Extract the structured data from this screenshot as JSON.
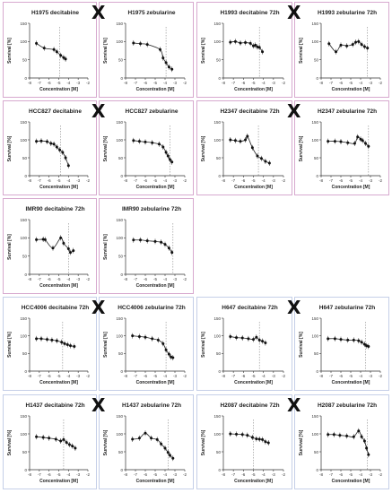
{
  "chart_data": [
    {
      "type": "scatter",
      "title": "H1975 decitabine",
      "xlabel": "Concentration [M]",
      "ylabel": "Survival [%]",
      "xlim": [
        -8,
        -2
      ],
      "ylim": [
        0,
        150
      ],
      "xticks": [
        -8,
        -7,
        -6,
        -5,
        -4,
        -3,
        -2
      ],
      "yticks": [
        0,
        50,
        100,
        150
      ],
      "color": "#d7a9cf",
      "points": [
        [
          -7.3,
          95
        ],
        [
          -6.5,
          82
        ],
        [
          -5.5,
          78
        ],
        [
          -5.2,
          72
        ],
        [
          -4.8,
          62
        ],
        [
          -4.5,
          56
        ],
        [
          -4.3,
          52
        ]
      ],
      "ref_x": -4.9
    },
    {
      "type": "scatter",
      "title": "H1975 zebularine",
      "xlabel": "Concentration [M]",
      "ylabel": "Survival [%]",
      "xlim": [
        -8,
        -2
      ],
      "ylim": [
        0,
        150
      ],
      "xticks": [
        -8,
        -7,
        -6,
        -5,
        -4,
        -3,
        -2
      ],
      "yticks": [
        0,
        50,
        100,
        150
      ],
      "color": "#d7a9cf",
      "points": [
        [
          -7.2,
          96
        ],
        [
          -6.5,
          94
        ],
        [
          -5.8,
          92
        ],
        [
          -4.5,
          78
        ],
        [
          -4.2,
          55
        ],
        [
          -3.9,
          42
        ],
        [
          -3.6,
          30
        ],
        [
          -3.3,
          24
        ]
      ],
      "ref_x": -3.9
    },
    {
      "type": "scatter",
      "title": "H1993 decitabine 72h",
      "xlabel": "Concentration [M]",
      "ylabel": "Survival [%]",
      "xlim": [
        -8,
        -2
      ],
      "ylim": [
        0,
        150
      ],
      "xticks": [
        -8,
        -7,
        -6,
        -5,
        -4,
        -3,
        -2
      ],
      "yticks": [
        0,
        50,
        100,
        150
      ],
      "color": "#d7a9cf",
      "points": [
        [
          -7.3,
          98
        ],
        [
          -6.8,
          100
        ],
        [
          -6.3,
          96
        ],
        [
          -5.8,
          97
        ],
        [
          -5.3,
          95
        ],
        [
          -5,
          88
        ],
        [
          -4.8,
          90
        ],
        [
          -4.6,
          85
        ],
        [
          -4.4,
          84
        ],
        [
          -4.1,
          72
        ]
      ],
      "ref_x": -4.4
    },
    {
      "type": "scatter",
      "title": "H1993 zebularine 72h",
      "xlabel": "Concentration [M]",
      "ylabel": "Survival [%]",
      "xlim": [
        -8,
        -2
      ],
      "ylim": [
        0,
        150
      ],
      "xticks": [
        -8,
        -7,
        -6,
        -5,
        -4,
        -3,
        -2
      ],
      "yticks": [
        0,
        50,
        100,
        150
      ],
      "color": "#d7a9cf",
      "points": [
        [
          -7.2,
          94
        ],
        [
          -6.5,
          72
        ],
        [
          -6,
          90
        ],
        [
          -5.4,
          88
        ],
        [
          -4.8,
          92
        ],
        [
          -4.5,
          98
        ],
        [
          -4.2,
          100
        ],
        [
          -3.9,
          92
        ],
        [
          -3.6,
          86
        ],
        [
          -3.3,
          82
        ]
      ],
      "ref_x": -3.3
    },
    {
      "type": "scatter",
      "title": "HCC827 decitabine",
      "xlabel": "Concentration [M]",
      "ylabel": "Survival [%]",
      "xlim": [
        -8,
        -2
      ],
      "ylim": [
        0,
        150
      ],
      "xticks": [
        -8,
        -7,
        -6,
        -5,
        -4,
        -3,
        -2
      ],
      "yticks": [
        0,
        50,
        100,
        150
      ],
      "color": "#d7a9cf",
      "points": [
        [
          -7.3,
          96
        ],
        [
          -6.8,
          97
        ],
        [
          -6.2,
          95
        ],
        [
          -5.8,
          90
        ],
        [
          -5.5,
          88
        ],
        [
          -5.2,
          80
        ],
        [
          -4.9,
          72
        ],
        [
          -4.6,
          65
        ],
        [
          -4.3,
          50
        ],
        [
          -4,
          28
        ]
      ],
      "ref_x": -4.8
    },
    {
      "type": "scatter",
      "title": "HCC827 zebularine",
      "xlabel": "Concentration [M]",
      "ylabel": "Survival [%]",
      "xlim": [
        -8,
        -2
      ],
      "ylim": [
        0,
        150
      ],
      "xticks": [
        -8,
        -7,
        -6,
        -5,
        -4,
        -3,
        -2
      ],
      "yticks": [
        0,
        50,
        100,
        150
      ],
      "color": "#d7a9cf",
      "points": [
        [
          -7.2,
          98
        ],
        [
          -6.6,
          96
        ],
        [
          -6,
          94
        ],
        [
          -5.3,
          92
        ],
        [
          -4.6,
          88
        ],
        [
          -4.2,
          80
        ],
        [
          -3.9,
          65
        ],
        [
          -3.7,
          55
        ],
        [
          -3.5,
          45
        ],
        [
          -3.3,
          38
        ]
      ],
      "ref_x": -3.5
    },
    {
      "type": "scatter",
      "title": "H2347 decitabine 72h",
      "xlabel": "Concentration [M]",
      "ylabel": "Survival [%]",
      "xlim": [
        -8,
        -2
      ],
      "ylim": [
        0,
        150
      ],
      "xticks": [
        -8,
        -7,
        -6,
        -5,
        -4,
        -3,
        -2
      ],
      "yticks": [
        0,
        50,
        100,
        150
      ],
      "color": "#d7a9cf",
      "points": [
        [
          -7.3,
          100
        ],
        [
          -6.8,
          98
        ],
        [
          -6.3,
          96
        ],
        [
          -5.8,
          100
        ],
        [
          -5.6,
          110
        ],
        [
          -5.1,
          78
        ],
        [
          -4.6,
          55
        ],
        [
          -4.2,
          48
        ],
        [
          -3.8,
          40
        ],
        [
          -3.4,
          35
        ]
      ],
      "ref_x": -4.5
    },
    {
      "type": "scatter",
      "title": "H2347 zebularine 72h",
      "xlabel": "Concentration [M]",
      "ylabel": "Survival [%]",
      "xlim": [
        -8,
        -2
      ],
      "ylim": [
        0,
        150
      ],
      "xticks": [
        -8,
        -7,
        -6,
        -5,
        -4,
        -3,
        -2
      ],
      "yticks": [
        0,
        50,
        100,
        150
      ],
      "color": "#d7a9cf",
      "points": [
        [
          -7.3,
          96
        ],
        [
          -6.6,
          96
        ],
        [
          -6,
          95
        ],
        [
          -5.3,
          92
        ],
        [
          -4.6,
          90
        ],
        [
          -4.3,
          108
        ],
        [
          -4,
          102
        ],
        [
          -3.8,
          98
        ],
        [
          -3.5,
          90
        ],
        [
          -3.2,
          82
        ]
      ],
      "ref_x": -3.2
    },
    {
      "type": "scatter",
      "title": "IMR90 decitabine 72h",
      "xlabel": "Concentration [M]",
      "ylabel": "Survival [%]",
      "xlim": [
        -8,
        -2
      ],
      "ylim": [
        0,
        150
      ],
      "xticks": [
        -8,
        -7,
        -6,
        -5,
        -4,
        -3,
        -2
      ],
      "yticks": [
        0,
        50,
        100,
        150
      ],
      "color": "#d7a9cf",
      "points": [
        [
          -7.3,
          95
        ],
        [
          -6.6,
          96
        ],
        [
          -6.4,
          95
        ],
        [
          -5.6,
          72
        ],
        [
          -4.8,
          100
        ],
        [
          -4.5,
          85
        ],
        [
          -4,
          70
        ],
        [
          -3.8,
          60
        ],
        [
          -3.5,
          65
        ]
      ],
      "ref_x": -4.0
    },
    {
      "type": "scatter",
      "title": "IMR90 zebularine 72h",
      "xlabel": "Concentration [M]",
      "ylabel": "Survival [%]",
      "xlim": [
        -8,
        -2
      ],
      "ylim": [
        0,
        150
      ],
      "xticks": [
        -8,
        -7,
        -6,
        -5,
        -4,
        -3,
        -2
      ],
      "yticks": [
        0,
        50,
        100,
        150
      ],
      "color": "#d7a9cf",
      "points": [
        [
          -7.2,
          94
        ],
        [
          -6.5,
          94
        ],
        [
          -5.8,
          92
        ],
        [
          -5,
          90
        ],
        [
          -4.4,
          88
        ],
        [
          -4,
          82
        ],
        [
          -3.6,
          72
        ],
        [
          -3.3,
          60
        ]
      ],
      "ref_x": -3.2
    },
    {
      "type": "scatter",
      "title": "HCC4006 decitabine 72h",
      "xlabel": "Concentration [M]",
      "ylabel": "Survival [%]",
      "xlim": [
        -8,
        -2
      ],
      "ylim": [
        0,
        150
      ],
      "xticks": [
        -8,
        -7,
        -6,
        -5,
        -4,
        -3,
        -2
      ],
      "yticks": [
        0,
        50,
        100,
        150
      ],
      "color": "#c5cfe8",
      "points": [
        [
          -7.3,
          92
        ],
        [
          -6.8,
          92
        ],
        [
          -6.2,
          90
        ],
        [
          -5.7,
          88
        ],
        [
          -5.2,
          86
        ],
        [
          -4.7,
          82
        ],
        [
          -4.4,
          78
        ],
        [
          -4.1,
          75
        ],
        [
          -3.8,
          72
        ],
        [
          -3.4,
          70
        ]
      ],
      "ref_x": -4.6
    },
    {
      "type": "scatter",
      "title": "HCC4006 zebularine 72h",
      "xlabel": "Concentration [M]",
      "ylabel": "Survival [%]",
      "xlim": [
        -8,
        -2
      ],
      "ylim": [
        0,
        150
      ],
      "xticks": [
        -8,
        -7,
        -6,
        -5,
        -4,
        -3,
        -2
      ],
      "yticks": [
        0,
        50,
        100,
        150
      ],
      "color": "#c5cfe8",
      "points": [
        [
          -7.3,
          100
        ],
        [
          -6.6,
          98
        ],
        [
          -6,
          96
        ],
        [
          -5.3,
          92
        ],
        [
          -4.7,
          88
        ],
        [
          -4.2,
          78
        ],
        [
          -3.9,
          60
        ],
        [
          -3.6,
          48
        ],
        [
          -3.4,
          40
        ],
        [
          -3.2,
          38
        ]
      ],
      "ref_x": -3.9
    },
    {
      "type": "scatter",
      "title": "H647 decitabine 72h",
      "xlabel": "Concentration [M]",
      "ylabel": "Survival [%]",
      "xlim": [
        -8,
        -2
      ],
      "ylim": [
        0,
        150
      ],
      "xticks": [
        -8,
        -7,
        -6,
        -5,
        -4,
        -3,
        -2
      ],
      "yticks": [
        0,
        50,
        100,
        150
      ],
      "color": "#c5cfe8",
      "points": [
        [
          -7.3,
          98
        ],
        [
          -6.7,
          95
        ],
        [
          -6.1,
          94
        ],
        [
          -5.5,
          92
        ],
        [
          -5,
          90
        ],
        [
          -4.7,
          96
        ],
        [
          -4.4,
          88
        ],
        [
          -4.1,
          85
        ],
        [
          -3.8,
          80
        ]
      ],
      "ref_x": -4.4
    },
    {
      "type": "scatter",
      "title": "H647 zebularine 72h",
      "xlabel": "Concentration [M]",
      "ylabel": "Survival [%]",
      "xlim": [
        -8,
        -2
      ],
      "ylim": [
        0,
        150
      ],
      "xticks": [
        -8,
        -7,
        -6,
        -5,
        -4,
        -3,
        -2
      ],
      "yticks": [
        0,
        50,
        100,
        150
      ],
      "color": "#c5cfe8",
      "points": [
        [
          -7.3,
          92
        ],
        [
          -6.6,
          92
        ],
        [
          -6,
          90
        ],
        [
          -5.3,
          88
        ],
        [
          -4.7,
          88
        ],
        [
          -4.2,
          86
        ],
        [
          -3.9,
          82
        ],
        [
          -3.6,
          76
        ],
        [
          -3.4,
          72
        ],
        [
          -3.2,
          70
        ]
      ],
      "ref_x": -3.5
    },
    {
      "type": "scatter",
      "title": "H1437 decitabine 72h",
      "xlabel": "Concentration [M]",
      "ylabel": "Survival [%]",
      "xlim": [
        -8,
        -2
      ],
      "ylim": [
        0,
        150
      ],
      "xticks": [
        -8,
        -7,
        -6,
        -5,
        -4,
        -3,
        -2
      ],
      "yticks": [
        0,
        50,
        100,
        150
      ],
      "color": "#c5cfe8",
      "points": [
        [
          -7.3,
          92
        ],
        [
          -6.6,
          90
        ],
        [
          -6,
          88
        ],
        [
          -5.3,
          85
        ],
        [
          -4.8,
          80
        ],
        [
          -4.5,
          84
        ],
        [
          -4.2,
          76
        ],
        [
          -3.9,
          70
        ],
        [
          -3.6,
          66
        ],
        [
          -3.3,
          60
        ]
      ],
      "ref_x": -4.5
    },
    {
      "type": "scatter",
      "title": "H1437 zebularine 72h",
      "xlabel": "Concentration [M]",
      "ylabel": "Survival [%]",
      "xlim": [
        -8,
        -2
      ],
      "ylim": [
        0,
        150
      ],
      "xticks": [
        -8,
        -7,
        -6,
        -5,
        -4,
        -3,
        -2
      ],
      "yticks": [
        0,
        50,
        100,
        150
      ],
      "color": "#c5cfe8",
      "points": [
        [
          -7.3,
          85
        ],
        [
          -6.6,
          88
        ],
        [
          -6,
          102
        ],
        [
          -5.4,
          88
        ],
        [
          -4.8,
          84
        ],
        [
          -4.4,
          72
        ],
        [
          -4,
          60
        ],
        [
          -3.7,
          48
        ],
        [
          -3.5,
          40
        ],
        [
          -3.2,
          32
        ]
      ],
      "ref_x": -3.7
    },
    {
      "type": "scatter",
      "title": "H2087 decitabine 72h",
      "xlabel": "Concentration [M]",
      "ylabel": "Survival [%]",
      "xlim": [
        -8,
        -2
      ],
      "ylim": [
        0,
        150
      ],
      "xticks": [
        -8,
        -7,
        -6,
        -5,
        -4,
        -3,
        -2
      ],
      "yticks": [
        0,
        50,
        100,
        150
      ],
      "color": "#c5cfe8",
      "points": [
        [
          -7.3,
          100
        ],
        [
          -6.7,
          99
        ],
        [
          -6.1,
          98
        ],
        [
          -5.6,
          96
        ],
        [
          -5.1,
          90
        ],
        [
          -4.7,
          86
        ],
        [
          -4.4,
          85
        ],
        [
          -4.1,
          84
        ],
        [
          -3.8,
          78
        ],
        [
          -3.5,
          75
        ]
      ],
      "ref_x": -5.0
    },
    {
      "type": "scatter",
      "title": "H2087 zebularine 72h",
      "xlabel": "Concentration [M]",
      "ylabel": "Survival [%]",
      "xlim": [
        -8,
        -2
      ],
      "ylim": [
        0,
        150
      ],
      "xticks": [
        -8,
        -7,
        -6,
        -5,
        -4,
        -3,
        -2
      ],
      "yticks": [
        0,
        50,
        100,
        150
      ],
      "color": "#c5cfe8",
      "points": [
        [
          -7.3,
          98
        ],
        [
          -6.7,
          98
        ],
        [
          -6.1,
          96
        ],
        [
          -5.4,
          94
        ],
        [
          -4.7,
          92
        ],
        [
          -4.2,
          108
        ],
        [
          -3.9,
          92
        ],
        [
          -3.6,
          80
        ],
        [
          -3.4,
          60
        ],
        [
          -3.2,
          42
        ]
      ],
      "ref_x": -3.3
    }
  ],
  "cross_symbol": "X"
}
